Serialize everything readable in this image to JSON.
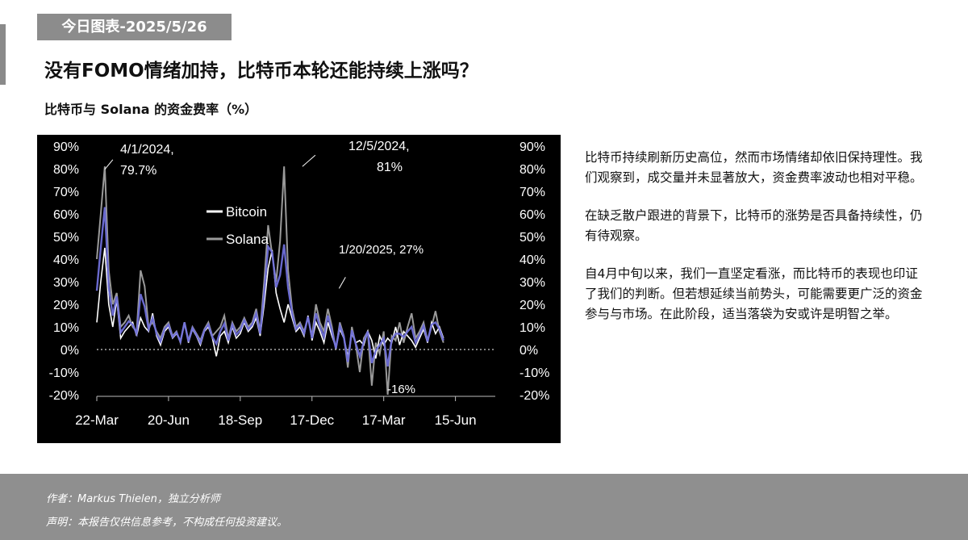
{
  "header": {
    "date_tag": "今日图表-2025/5/26",
    "headline": "没有FOMO情绪加持，比特币本轮还能持续上涨吗？",
    "subtitle": "比特币与 Solana 的资金费率（%）"
  },
  "commentary": [
    "比特币持续刷新历史高位，然而市场情绪却依旧保持理性。我们观察到，成交量并未显著放大，资金费率波动也相对平稳。",
    "在缺乏散户跟进的背景下，比特币的涨势是否具备持续性，仍有待观察。",
    "自4月中旬以来，我们一直坚定看涨，而比特币的表现也印证了我们的判断。但若想延续当前势头，可能需要更广泛的资金参与与市场。在此阶段，适当落袋为安或许是明智之举。"
  ],
  "footer": {
    "author": "作者：Markus Thielen，独立分析师",
    "disclaimer": "声明：本报告仅供信息参考，不构成任何投资建议。"
  },
  "chart_data": {
    "type": "line",
    "title": "比特币与 Solana 的资金费率（%）",
    "xlabel": "",
    "ylabel": "",
    "ylim": [
      -20,
      90
    ],
    "x_ticks": [
      "22-Mar",
      "20-Jun",
      "18-Sep",
      "17-Dec",
      "17-Mar",
      "15-Jun"
    ],
    "y_ticks": [
      "90%",
      "80%",
      "70%",
      "60%",
      "50%",
      "40%",
      "30%",
      "20%",
      "10%",
      "0%",
      "-10%",
      "-20%"
    ],
    "legend": {
      "placement": "top-left",
      "entries": [
        "Bitcoin",
        "Solana"
      ]
    },
    "zero_line": "dotted",
    "colors": {
      "background": "#000000",
      "bitcoin": "#ffffff",
      "solana": "#9a9a9a",
      "overlay": "#6f6fd8",
      "text": "#ffffff"
    },
    "series": [
      {
        "name": "Bitcoin",
        "x_days": [
          0,
          5,
          10,
          15,
          20,
          25,
          30,
          35,
          40,
          45,
          50,
          55,
          60,
          65,
          70,
          75,
          80,
          85,
          90,
          95,
          100,
          105,
          110,
          115,
          120,
          125,
          130,
          135,
          140,
          145,
          150,
          155,
          160,
          165,
          170,
          175,
          180,
          185,
          190,
          195,
          200,
          205,
          210,
          215,
          220,
          225,
          230,
          235,
          240,
          245,
          250,
          255,
          260,
          265,
          270,
          275,
          280,
          285,
          290,
          295,
          300,
          305,
          310,
          315,
          320,
          325,
          330,
          335,
          340,
          345,
          350,
          355,
          360,
          365,
          370,
          375,
          380,
          385,
          390,
          395,
          400,
          405,
          410,
          415,
          420,
          425,
          430,
          435
        ],
        "values": [
          12,
          30,
          45,
          20,
          10,
          22,
          5,
          8,
          10,
          12,
          6,
          14,
          10,
          8,
          16,
          6,
          2,
          8,
          10,
          5,
          7,
          4,
          12,
          3,
          9,
          6,
          2,
          8,
          10,
          5,
          -3,
          6,
          8,
          3,
          10,
          5,
          7,
          12,
          8,
          10,
          14,
          6,
          20,
          36,
          44,
          25,
          18,
          12,
          20,
          14,
          8,
          10,
          6,
          15,
          4,
          12,
          8,
          3,
          12,
          6,
          1,
          9,
          5,
          -3,
          7,
          3,
          4,
          2,
          8,
          4,
          -4,
          6,
          2,
          5,
          3,
          10,
          2,
          8,
          6,
          4,
          1,
          5,
          9,
          3,
          12,
          7,
          10,
          5
        ]
      },
      {
        "name": "Solana",
        "x_days": [
          0,
          5,
          10,
          15,
          20,
          25,
          30,
          35,
          40,
          45,
          50,
          55,
          60,
          65,
          70,
          75,
          80,
          85,
          90,
          95,
          100,
          105,
          110,
          115,
          120,
          125,
          130,
          135,
          140,
          145,
          150,
          155,
          160,
          165,
          170,
          175,
          180,
          185,
          190,
          195,
          200,
          205,
          210,
          215,
          220,
          225,
          230,
          235,
          240,
          245,
          250,
          255,
          260,
          265,
          270,
          275,
          280,
          285,
          290,
          295,
          300,
          305,
          310,
          315,
          320,
          325,
          330,
          335,
          340,
          345,
          350,
          355,
          360,
          365,
          370,
          375,
          380,
          385,
          390,
          395,
          400,
          405,
          410,
          415,
          420,
          425,
          430,
          435
        ],
        "values": [
          40,
          60,
          81,
          35,
          20,
          25,
          10,
          12,
          15,
          10,
          8,
          35,
          28,
          10,
          12,
          8,
          5,
          10,
          12,
          6,
          8,
          3,
          12,
          4,
          10,
          7,
          4,
          9,
          12,
          6,
          8,
          10,
          15,
          5,
          12,
          8,
          10,
          14,
          10,
          12,
          18,
          8,
          30,
          55,
          42,
          30,
          48,
          81,
          35,
          18,
          10,
          12,
          8,
          14,
          6,
          20,
          12,
          8,
          18,
          10,
          0,
          12,
          6,
          -8,
          10,
          2,
          -10,
          5,
          8,
          -16,
          3,
          -2,
          8,
          -20,
          6,
          4,
          12,
          3,
          10,
          16,
          5,
          8,
          12,
          4,
          10,
          17,
          8,
          3
        ]
      }
    ],
    "annotations": [
      {
        "text": "4/1/2024,\n79.7%",
        "x_day": 10,
        "y": 79.7
      },
      {
        "text": "12/5/2024,\n81%",
        "x_day": 258,
        "y": 81
      },
      {
        "text": "1/20/2025, 27%",
        "x_day": 304,
        "y": 27
      },
      {
        "text": "-16%",
        "x_day": 355,
        "y": -16
      }
    ]
  }
}
